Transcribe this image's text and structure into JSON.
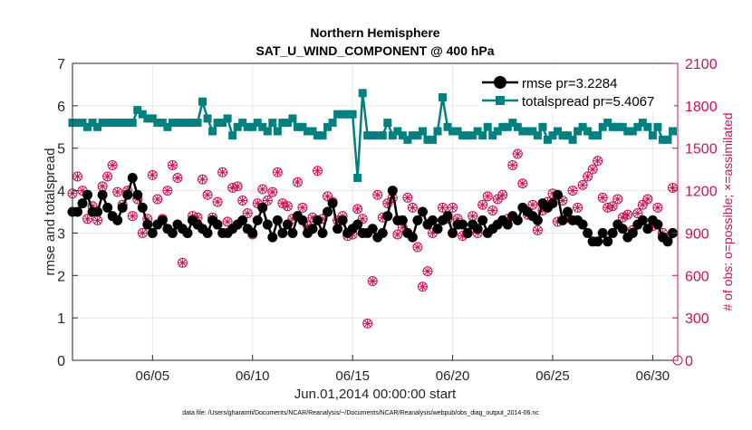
{
  "colors": {
    "rmse": "#000000",
    "totalspread": "#00807f",
    "obs": "#cc1155",
    "grid": "#e6e6e6",
    "axis": "#262626"
  },
  "chart_data": {
    "type": "line",
    "title": "Northern Hemisphere",
    "subtitle": "SAT_U_WIND_COMPONENT @ 400 hPa",
    "xlabel": "Jun.01,2014 00:00:00 start",
    "ylabel": "rmse and totalspread",
    "y2label": "# of obs: o=possible; ×=assimilated",
    "footnote": "data file: /Users/gharamti/Documents/NCAR/Reanalysis/~/Documents/NCAR/Reanalysis/webpub/obs_diag_output_2014-06.nc",
    "xlim": [
      1,
      31.25
    ],
    "ylim": [
      0,
      7
    ],
    "y2lim": [
      0,
      2100
    ],
    "x_ticks": [
      5,
      10,
      15,
      20,
      25,
      30
    ],
    "x_tick_labels": [
      "06/05",
      "06/10",
      "06/15",
      "06/20",
      "06/25",
      "06/30"
    ],
    "y_ticks": [
      0,
      1,
      2,
      3,
      4,
      5,
      6,
      7
    ],
    "y2_ticks": [
      0,
      300,
      600,
      900,
      1200,
      1500,
      1800,
      2100
    ],
    "legend": {
      "location": "top-right",
      "entries": [
        "rmse pr=3.2284",
        "totalspread pr=5.4067"
      ]
    },
    "x": [
      1.0,
      1.25,
      1.5,
      1.75,
      2.0,
      2.25,
      2.5,
      2.75,
      3.0,
      3.25,
      3.5,
      3.75,
      4.0,
      4.25,
      4.5,
      4.75,
      5.0,
      5.25,
      5.5,
      5.75,
      6.0,
      6.25,
      6.5,
      6.75,
      7.0,
      7.25,
      7.5,
      7.75,
      8.0,
      8.25,
      8.5,
      8.75,
      9.0,
      9.25,
      9.5,
      9.75,
      10.0,
      10.25,
      10.5,
      10.75,
      11.0,
      11.25,
      11.5,
      11.75,
      12.0,
      12.25,
      12.5,
      12.75,
      13.0,
      13.25,
      13.5,
      13.75,
      14.0,
      14.25,
      14.5,
      14.75,
      15.0,
      15.25,
      15.5,
      15.75,
      16.0,
      16.25,
      16.5,
      16.75,
      17.0,
      17.25,
      17.5,
      17.75,
      18.0,
      18.25,
      18.5,
      18.75,
      19.0,
      19.25,
      19.5,
      19.75,
      20.0,
      20.25,
      20.5,
      20.75,
      21.0,
      21.25,
      21.5,
      21.75,
      22.0,
      22.25,
      22.5,
      22.75,
      23.0,
      23.25,
      23.5,
      23.75,
      24.0,
      24.25,
      24.5,
      24.75,
      25.0,
      25.25,
      25.5,
      25.75,
      26.0,
      26.25,
      26.5,
      26.75,
      27.0,
      27.25,
      27.5,
      27.75,
      28.0,
      28.25,
      28.5,
      28.75,
      29.0,
      29.25,
      29.5,
      29.75,
      30.0,
      30.25,
      30.5,
      30.75,
      31.0
    ],
    "series": [
      {
        "name": "rmse",
        "axis": "left",
        "values": [
          3.5,
          3.5,
          3.7,
          3.9,
          3.5,
          3.5,
          3.9,
          3.6,
          3.4,
          3.3,
          3.6,
          3.9,
          4.3,
          3.9,
          3.6,
          3.2,
          3.0,
          3.2,
          3.3,
          3.1,
          3.0,
          3.2,
          3.1,
          3.0,
          3.3,
          3.2,
          3.1,
          3.0,
          3.3,
          3.2,
          3.0,
          3.0,
          3.1,
          3.2,
          3.3,
          3.1,
          3.0,
          3.3,
          3.6,
          3.2,
          2.9,
          3.3,
          3.0,
          3.2,
          3.0,
          3.4,
          3.3,
          3.0,
          3.1,
          3.3,
          3.0,
          3.5,
          3.7,
          3.1,
          3.3,
          3.0,
          3.1,
          3.2,
          3.0,
          3.0,
          3.1,
          2.9,
          3.0,
          3.4,
          4.0,
          3.3,
          3.3,
          3.0,
          2.9,
          3.3,
          3.5,
          3.2,
          3.3,
          3.1,
          3.3,
          3.4,
          3.0,
          3.2,
          3.2,
          3.0,
          3.2,
          3.1,
          3.3,
          3.0,
          3.1,
          3.2,
          3.3,
          3.2,
          3.4,
          3.3,
          3.6,
          3.5,
          3.4,
          3.3,
          3.7,
          3.6,
          3.7,
          3.9,
          3.3,
          3.5,
          3.3,
          3.3,
          3.2,
          3.0,
          2.8,
          2.8,
          3.0,
          2.8,
          3.0,
          3.2,
          3.1,
          2.9,
          3.0,
          3.2,
          3.3,
          3.1,
          3.3,
          3.2,
          2.9,
          2.8,
          3.0
        ]
      },
      {
        "name": "totalspread",
        "axis": "left",
        "values": [
          5.6,
          5.6,
          5.6,
          5.5,
          5.6,
          5.5,
          5.6,
          5.6,
          5.6,
          5.6,
          5.6,
          5.6,
          5.6,
          5.9,
          5.8,
          5.7,
          5.7,
          5.6,
          5.6,
          5.5,
          5.6,
          5.6,
          5.6,
          5.6,
          5.6,
          5.6,
          6.1,
          5.7,
          5.4,
          5.6,
          5.6,
          5.7,
          5.3,
          5.5,
          5.6,
          5.5,
          5.5,
          5.6,
          5.5,
          5.4,
          5.6,
          5.4,
          5.6,
          5.6,
          5.7,
          5.5,
          5.5,
          5.4,
          5.4,
          5.3,
          5.3,
          5.5,
          5.6,
          5.8,
          5.8,
          5.8,
          5.8,
          4.3,
          6.3,
          5.3,
          5.3,
          5.3,
          5.3,
          5.6,
          5.3,
          5.4,
          5.3,
          5.2,
          5.3,
          5.3,
          5.4,
          5.2,
          5.2,
          5.4,
          6.2,
          5.5,
          5.4,
          5.4,
          5.3,
          5.3,
          5.3,
          5.4,
          5.3,
          5.5,
          5.3,
          5.4,
          5.5,
          5.5,
          5.6,
          5.5,
          5.4,
          5.4,
          5.4,
          5.3,
          5.5,
          5.2,
          5.3,
          5.4,
          5.3,
          5.3,
          5.2,
          5.4,
          5.5,
          5.4,
          5.3,
          5.3,
          5.5,
          5.6,
          5.5,
          5.5,
          5.5,
          5.4,
          5.4,
          5.5,
          5.6,
          5.5,
          5.3,
          5.5,
          5.2,
          5.2,
          5.4
        ]
      },
      {
        "name": "possible",
        "axis": "right",
        "values": [
          1180,
          1300,
          1200,
          1000,
          1090,
          990,
          1230,
          1300,
          1380,
          1190,
          1100,
          1200,
          1020,
          1140,
          900,
          1000,
          1310,
          1140,
          1000,
          1200,
          1380,
          1290,
          690,
          900,
          1020,
          1010,
          1280,
          1170,
          1010,
          1120,
          1330,
          980,
          1220,
          1230,
          1130,
          1040,
          890,
          1110,
          1210,
          1130,
          1190,
          1330,
          1110,
          1090,
          1000,
          1260,
          1080,
          950,
          1010,
          1340,
          1000,
          1160,
          1120,
          990,
          1020,
          880,
          890,
          1070,
          1000,
          260,
          560,
          1170,
          1010,
          1110,
          1150,
          890,
          940,
          1150,
          1080,
          800,
          520,
          630,
          900,
          930,
          1080,
          1000,
          1080,
          1000,
          880,
          900,
          1020,
          900,
          1100,
          1160,
          1060,
          1140,
          1170,
          1000,
          1380,
          1460,
          1250,
          1030,
          1100,
          920,
          1060,
          1120,
          1180,
          980,
          1130,
          1010,
          1200,
          1080,
          1240,
          1300,
          1350,
          1410,
          1150,
          1080,
          1090,
          1140,
          1010,
          1030,
          920,
          1040,
          1100,
          1140,
          950,
          1080,
          900,
          860,
          1220
        ]
      },
      {
        "name": "assimilated",
        "axis": "right",
        "values": [
          1180,
          1300,
          1200,
          1000,
          1090,
          990,
          1230,
          1300,
          1380,
          1190,
          1100,
          1200,
          1020,
          1140,
          900,
          1000,
          1310,
          1140,
          1000,
          1200,
          1380,
          1290,
          690,
          900,
          1020,
          1010,
          1280,
          1170,
          1010,
          1120,
          1330,
          980,
          1220,
          1230,
          1130,
          1040,
          890,
          1110,
          1210,
          1130,
          1190,
          1330,
          1110,
          1090,
          1000,
          1260,
          1080,
          950,
          1010,
          1340,
          1000,
          1160,
          1120,
          990,
          1020,
          880,
          890,
          1070,
          1000,
          260,
          560,
          1170,
          1010,
          1110,
          1150,
          890,
          940,
          1150,
          1080,
          800,
          520,
          630,
          900,
          930,
          1080,
          1000,
          1080,
          1000,
          880,
          900,
          1020,
          900,
          1100,
          1160,
          1060,
          1140,
          1170,
          1000,
          1380,
          1460,
          1250,
          1030,
          1100,
          920,
          1060,
          1120,
          1180,
          980,
          1130,
          1010,
          1200,
          1080,
          1240,
          1300,
          1350,
          1410,
          1150,
          1080,
          1090,
          1140,
          1010,
          1030,
          920,
          1040,
          1100,
          1140,
          950,
          1080,
          900,
          860,
          1220
        ]
      }
    ]
  }
}
